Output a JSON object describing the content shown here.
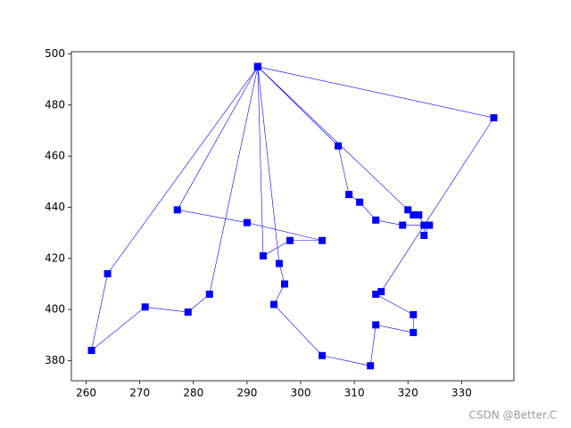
{
  "chart_data": {
    "type": "line",
    "x": [
      292,
      264,
      261,
      271,
      279,
      283,
      292,
      277,
      290,
      304,
      298,
      293,
      292,
      296,
      297,
      295,
      304,
      313,
      314,
      321,
      321,
      314,
      315,
      336,
      292,
      307,
      309,
      311,
      314,
      319,
      324,
      323,
      323,
      322,
      321,
      320,
      292
    ],
    "series": [
      {
        "color": "#0000ff",
        "values": [
          495,
          414,
          384,
          401,
          399,
          406,
          495,
          439,
          434,
          427,
          427,
          421,
          495,
          418,
          410,
          402,
          382,
          378,
          394,
          391,
          398,
          406,
          407,
          475,
          495,
          464,
          445,
          442,
          435,
          433,
          433,
          429,
          433,
          437,
          437,
          439,
          495
        ]
      }
    ],
    "xlim": [
      257.25,
      339.75
    ],
    "ylim": [
      372.15,
      500.85
    ],
    "xticks": [
      260,
      270,
      280,
      290,
      300,
      310,
      320,
      330
    ],
    "yticks": [
      380,
      400,
      420,
      440,
      460,
      480,
      500
    ],
    "marker": "square",
    "watermark": "CSDN @Better.C"
  }
}
